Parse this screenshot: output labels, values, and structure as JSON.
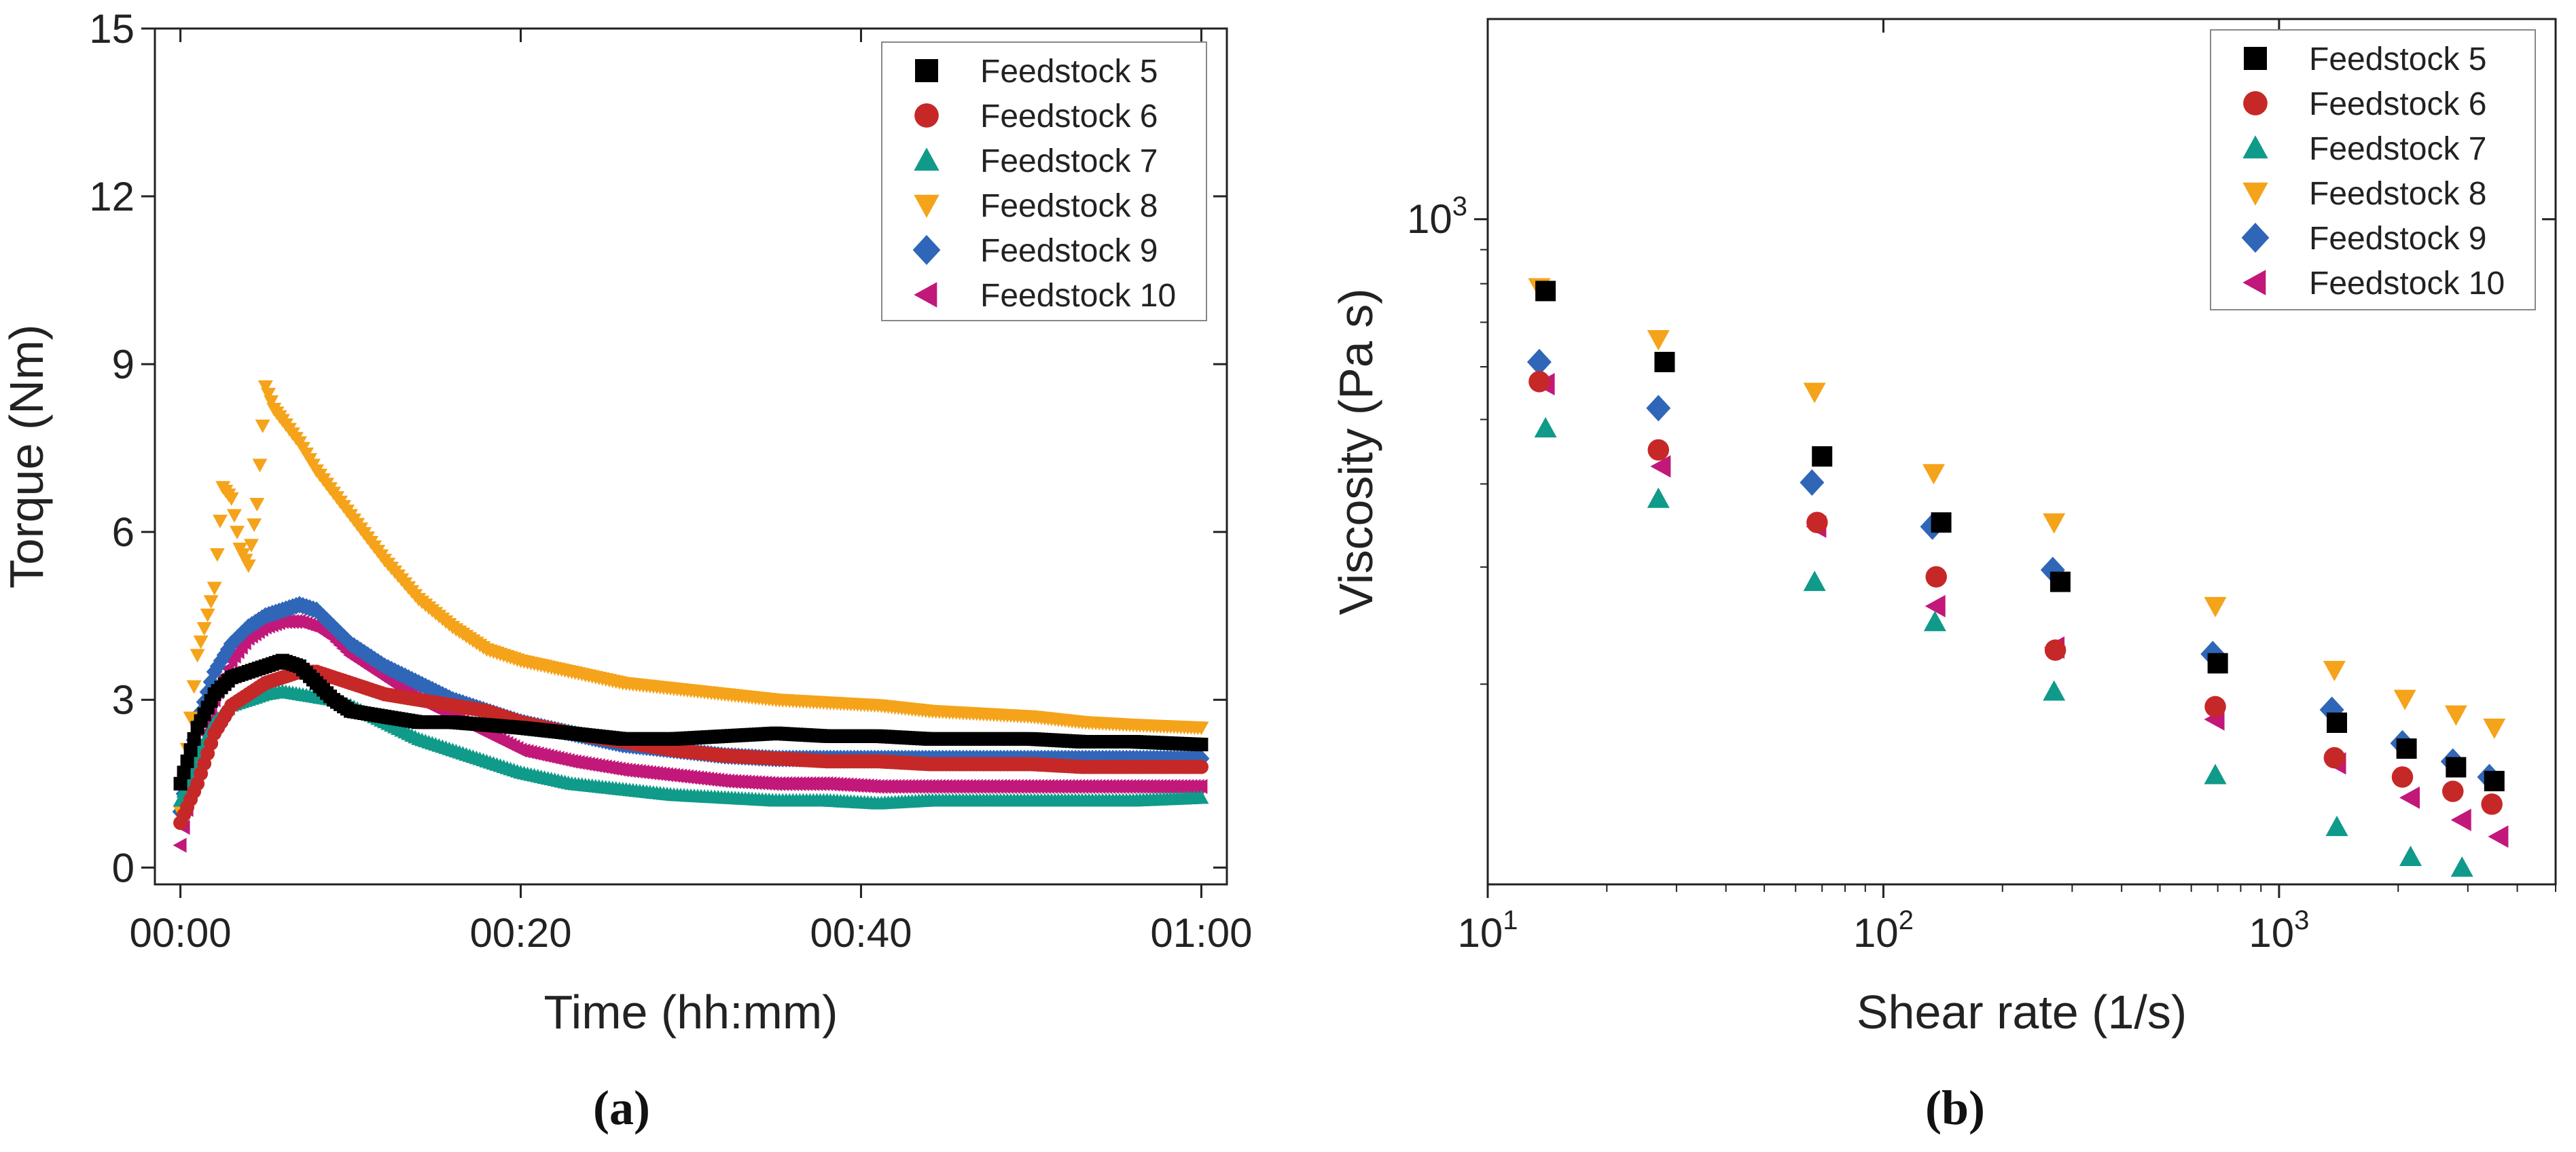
{
  "panels": [
    {
      "label": "(a)",
      "chart_data": {
        "type": "scatter",
        "title": "",
        "xlabel": "Time (hh:mm)",
        "ylabel": "Torque (Nm)",
        "xlim": [
          -1.5,
          61.5
        ],
        "ylim": [
          -0.3,
          15
        ],
        "x_ticks": [
          0,
          20,
          40,
          60
        ],
        "x_tick_labels": [
          "00:00",
          "00:20",
          "00:40",
          "01:00"
        ],
        "y_ticks": [
          0,
          3,
          6,
          9,
          12,
          15
        ],
        "y_tick_labels": [
          "0",
          "3",
          "6",
          "9",
          "12",
          "15"
        ],
        "grid": false,
        "legend_position": "top-right",
        "series": [
          {
            "name": "Feedstock 5",
            "color": "#000000",
            "marker": "square",
            "x": [
              0,
              1,
              2,
              3,
              4,
              5,
              6,
              7,
              8,
              9,
              10,
              12,
              14,
              16,
              18,
              20,
              23,
              26,
              29,
              32,
              35,
              38,
              41,
              44,
              47,
              50,
              53,
              56,
              60
            ],
            "y": [
              1.5,
              2.5,
              3.1,
              3.4,
              3.5,
              3.6,
              3.7,
              3.6,
              3.3,
              3.0,
              2.8,
              2.7,
              2.6,
              2.6,
              2.55,
              2.5,
              2.4,
              2.3,
              2.3,
              2.35,
              2.4,
              2.35,
              2.35,
              2.3,
              2.3,
              2.3,
              2.25,
              2.25,
              2.2
            ]
          },
          {
            "name": "Feedstock 6",
            "color": "#c62828",
            "marker": "circle",
            "x": [
              0,
              1,
              2,
              3,
              4,
              5,
              6,
              7,
              8,
              9,
              10,
              12,
              14,
              16,
              18,
              20,
              23,
              26,
              29,
              32,
              35,
              38,
              41,
              44,
              47,
              50,
              53,
              56,
              60
            ],
            "y": [
              0.8,
              1.5,
              2.4,
              2.9,
              3.1,
              3.3,
              3.4,
              3.5,
              3.5,
              3.4,
              3.3,
              3.1,
              3.0,
              2.9,
              2.8,
              2.6,
              2.4,
              2.25,
              2.1,
              2.0,
              1.95,
              1.9,
              1.9,
              1.85,
              1.85,
              1.85,
              1.8,
              1.8,
              1.8
            ]
          },
          {
            "name": "Feedstock 7",
            "color": "#0f9a8a",
            "marker": "triangle-up",
            "x": [
              0,
              1,
              2,
              3,
              4,
              5,
              6,
              7,
              8,
              9,
              10,
              12,
              14,
              16,
              18,
              20,
              23,
              26,
              29,
              32,
              35,
              38,
              41,
              44,
              47,
              50,
              53,
              56,
              60
            ],
            "y": [
              1.2,
              2.0,
              2.6,
              2.9,
              3.0,
              3.1,
              3.15,
              3.1,
              3.05,
              3.0,
              2.9,
              2.6,
              2.3,
              2.1,
              1.9,
              1.7,
              1.5,
              1.4,
              1.3,
              1.25,
              1.2,
              1.2,
              1.15,
              1.2,
              1.2,
              1.2,
              1.2,
              1.2,
              1.25
            ]
          },
          {
            "name": "Feedstock 8",
            "color": "#f5a31a",
            "marker": "triangle-down",
            "x": [
              0,
              1,
              2,
              2.5,
              3,
              3.5,
              4,
              4.5,
              5,
              5.5,
              6,
              7,
              8,
              9,
              10,
              11,
              12,
              14,
              16,
              18,
              20,
              23,
              26,
              29,
              32,
              35,
              38,
              41,
              44,
              47,
              50,
              53,
              56,
              60
            ],
            "y": [
              1.0,
              3.8,
              5.0,
              6.8,
              6.6,
              5.7,
              5.4,
              6.5,
              8.6,
              8.2,
              8.0,
              7.6,
              7.1,
              6.7,
              6.3,
              5.9,
              5.5,
              4.8,
              4.3,
              3.9,
              3.7,
              3.5,
              3.3,
              3.2,
              3.1,
              3.0,
              2.95,
              2.9,
              2.8,
              2.75,
              2.7,
              2.6,
              2.55,
              2.5
            ]
          },
          {
            "name": "Feedstock 9",
            "color": "#2f66b8",
            "marker": "diamond",
            "x": [
              0,
              1,
              2,
              3,
              4,
              5,
              6,
              7,
              8,
              9,
              10,
              12,
              14,
              16,
              18,
              20,
              23,
              26,
              29,
              32,
              35,
              38,
              41,
              44,
              47,
              50,
              53,
              56,
              60
            ],
            "y": [
              1.0,
              2.6,
              3.5,
              4.0,
              4.3,
              4.5,
              4.6,
              4.7,
              4.6,
              4.3,
              4.0,
              3.6,
              3.3,
              3.0,
              2.8,
              2.6,
              2.4,
              2.2,
              2.1,
              2.0,
              1.95,
              1.95,
              1.95,
              1.95,
              1.95,
              1.95,
              1.95,
              1.95,
              1.95
            ]
          },
          {
            "name": "Feedstock 10",
            "color": "#c2187a",
            "marker": "triangle-left",
            "x": [
              0,
              1,
              2,
              3,
              4,
              5,
              6,
              7,
              8,
              9,
              10,
              12,
              14,
              16,
              18,
              20,
              23,
              26,
              29,
              32,
              35,
              38,
              41,
              44,
              47,
              50,
              53,
              56,
              60
            ],
            "y": [
              0.4,
              2.0,
              3.0,
              3.7,
              4.1,
              4.3,
              4.4,
              4.4,
              4.3,
              4.1,
              3.8,
              3.4,
              3.0,
              2.7,
              2.4,
              2.1,
              1.9,
              1.75,
              1.65,
              1.55,
              1.5,
              1.5,
              1.45,
              1.45,
              1.45,
              1.45,
              1.45,
              1.45,
              1.45
            ]
          }
        ]
      }
    },
    {
      "label": "(b)",
      "chart_data": {
        "type": "scatter",
        "title": "",
        "xlabel": "Shear rate (1/s)",
        "ylabel": "Viscosity (Pa s)",
        "x_scale": "log",
        "y_scale": "log",
        "xlim": [
          10,
          5000
        ],
        "ylim": [
          100,
          2000
        ],
        "x_ticks": [
          10,
          100,
          1000
        ],
        "x_tick_labels": [
          [
            "10",
            "1"
          ],
          [
            "10",
            "2"
          ],
          [
            "10",
            "3"
          ]
        ],
        "y_ticks": [
          1000
        ],
        "y_tick_labels": [
          [
            "10",
            "3"
          ]
        ],
        "grid": false,
        "legend_position": "top-right",
        "series": [
          {
            "name": "Feedstock 5",
            "color": "#000000",
            "marker": "square",
            "x": [
              14,
              28,
              70,
              140,
              280,
              700,
              1400,
              2100,
              2800,
              3500
            ],
            "y": [
              780,
              610,
              440,
              350,
              285,
              215,
              175,
              160,
              150,
              143
            ]
          },
          {
            "name": "Feedstock 6",
            "color": "#c62828",
            "marker": "circle",
            "x": [
              13.5,
              27,
              68,
              136,
              272,
              690,
              1380,
              2050,
              2750,
              3450
            ],
            "y": [
              570,
              450,
              350,
              290,
              225,
              185,
              155,
              145,
              138,
              132
            ]
          },
          {
            "name": "Feedstock 7",
            "color": "#0f9a8a",
            "marker": "triangle-up",
            "x": [
              14,
              27,
              67,
              135,
              270,
              690,
              1400,
              2150,
              2900
            ],
            "y": [
              485,
              380,
              285,
              248,
              195,
              146,
              122,
              110,
              106
            ]
          },
          {
            "name": "Feedstock 8",
            "color": "#f5a31a",
            "marker": "triangle-down",
            "x": [
              13.5,
              27,
              67,
              134,
              270,
              690,
              1380,
              2080,
              2800,
              3500
            ],
            "y": [
              790,
              660,
              550,
              415,
              350,
              262,
              210,
              190,
              180,
              172
            ]
          },
          {
            "name": "Feedstock 9",
            "color": "#2f66b8",
            "marker": "diamond",
            "x": [
              13.5,
              27,
              66,
              133,
              268,
              680,
              1360,
              2050,
              2750,
              3400
            ],
            "y": [
              610,
              520,
              402,
              345,
              297,
              222,
              183,
              163,
              153,
              145
            ]
          },
          {
            "name": "Feedstock 10",
            "color": "#c2187a",
            "marker": "triangle-left",
            "x": [
              14,
              27.5,
              68,
              136,
              272,
              690,
              1400,
              2150,
              2900,
              3600
            ],
            "y": [
              565,
              425,
              345,
              262,
              227,
              177,
              152,
              135,
              125,
              118
            ]
          }
        ]
      }
    }
  ]
}
